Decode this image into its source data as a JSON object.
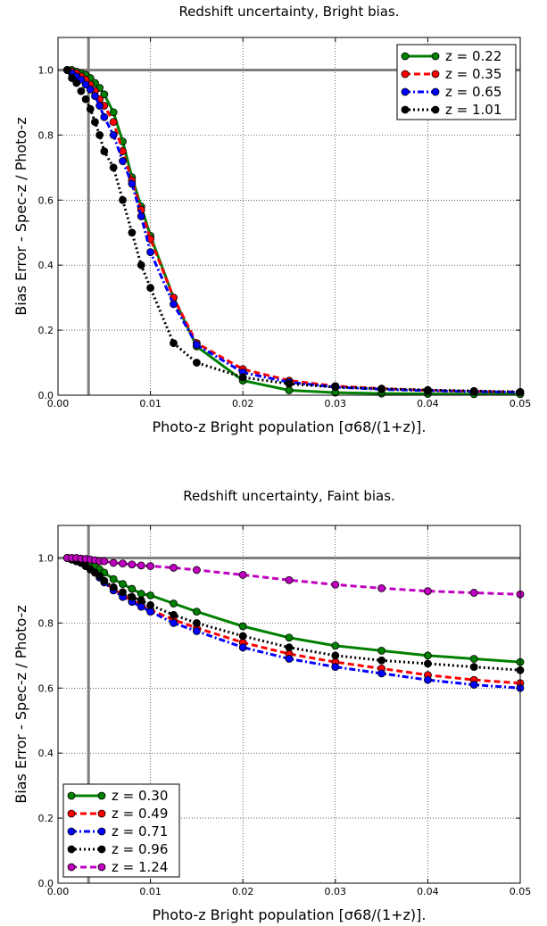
{
  "chart_data": [
    {
      "type": "line",
      "title": "Redshift uncertainty, Bright bias.",
      "xlabel": "Photo-z Bright population [σ68/(1+z)].",
      "ylabel": "Bias Error - Spec-z / Photo-z",
      "xlim": [
        0.0,
        0.05
      ],
      "ylim": [
        0.0,
        1.1
      ],
      "xticks": [
        "0.00",
        "0.01",
        "0.02",
        "0.03",
        "0.04",
        "0.05"
      ],
      "yticks": [
        "0.0",
        "0.2",
        "0.4",
        "0.6",
        "0.8",
        "1.0"
      ],
      "grid": true,
      "legend_position": "top-right",
      "reference_lines": {
        "hline_y": 1.0,
        "vline_x": 0.0033
      },
      "x": [
        0.001,
        0.0015,
        0.002,
        0.0025,
        0.003,
        0.0035,
        0.004,
        0.0045,
        0.005,
        0.006,
        0.007,
        0.008,
        0.009,
        0.01,
        0.0125,
        0.015,
        0.02,
        0.025,
        0.03,
        0.035,
        0.04,
        0.045,
        0.05
      ],
      "series": [
        {
          "name": "z = 0.22",
          "color": "#008000",
          "dash": "solid",
          "values": [
            1.0,
            1.0,
            0.995,
            0.99,
            0.985,
            0.975,
            0.96,
            0.945,
            0.925,
            0.87,
            0.78,
            0.67,
            0.58,
            0.49,
            0.3,
            0.15,
            0.045,
            0.015,
            0.008,
            0.005,
            0.004,
            0.003,
            0.003
          ]
        },
        {
          "name": "z = 0.35",
          "color": "#ff0000",
          "dash": "dashed",
          "values": [
            1.0,
            0.995,
            0.99,
            0.98,
            0.97,
            0.955,
            0.935,
            0.91,
            0.89,
            0.84,
            0.75,
            0.66,
            0.57,
            0.48,
            0.3,
            0.16,
            0.08,
            0.045,
            0.028,
            0.02,
            0.015,
            0.012,
            0.01
          ]
        },
        {
          "name": "z = 0.65",
          "color": "#0000ff",
          "dash": "dashdot",
          "values": [
            1.0,
            0.99,
            0.98,
            0.97,
            0.955,
            0.94,
            0.92,
            0.89,
            0.855,
            0.8,
            0.72,
            0.65,
            0.55,
            0.44,
            0.28,
            0.155,
            0.07,
            0.04,
            0.025,
            0.018,
            0.014,
            0.011,
            0.009
          ]
        },
        {
          "name": "z = 1.01",
          "color": "#000000",
          "dash": "dotted",
          "values": [
            1.0,
            0.975,
            0.96,
            0.935,
            0.91,
            0.88,
            0.84,
            0.8,
            0.75,
            0.7,
            0.6,
            0.5,
            0.4,
            0.33,
            0.16,
            0.1,
            0.055,
            0.035,
            0.025,
            0.02,
            0.016,
            0.013,
            0.01
          ]
        }
      ]
    },
    {
      "type": "line",
      "title": "Redshift uncertainty, Faint bias.",
      "xlabel": "Photo-z Bright population [σ68/(1+z)].",
      "ylabel": "Bias Error - Spec-z / Photo-z",
      "xlim": [
        0.0,
        0.05
      ],
      "ylim": [
        0.0,
        1.1
      ],
      "xticks": [
        "0.00",
        "0.01",
        "0.02",
        "0.03",
        "0.04",
        "0.05"
      ],
      "yticks": [
        "0.0",
        "0.2",
        "0.4",
        "0.6",
        "0.8",
        "1.0"
      ],
      "grid": true,
      "legend_position": "bottom-left",
      "reference_lines": {
        "hline_y": 1.0,
        "vline_x": 0.0033
      },
      "x": [
        0.001,
        0.0015,
        0.002,
        0.0025,
        0.003,
        0.0035,
        0.004,
        0.0045,
        0.005,
        0.006,
        0.007,
        0.008,
        0.009,
        0.01,
        0.0125,
        0.015,
        0.02,
        0.025,
        0.03,
        0.035,
        0.04,
        0.045,
        0.05
      ],
      "series": [
        {
          "name": "z = 0.30",
          "color": "#008000",
          "dash": "solid",
          "values": [
            1.0,
            0.998,
            0.995,
            0.99,
            0.985,
            0.98,
            0.975,
            0.965,
            0.955,
            0.935,
            0.92,
            0.905,
            0.89,
            0.885,
            0.86,
            0.835,
            0.79,
            0.755,
            0.73,
            0.715,
            0.7,
            0.69,
            0.68
          ]
        },
        {
          "name": "z = 0.49",
          "color": "#ff0000",
          "dash": "dashed",
          "values": [
            1.0,
            0.995,
            0.99,
            0.985,
            0.975,
            0.965,
            0.955,
            0.94,
            0.925,
            0.905,
            0.885,
            0.87,
            0.855,
            0.84,
            0.81,
            0.785,
            0.74,
            0.705,
            0.68,
            0.66,
            0.64,
            0.625,
            0.615
          ]
        },
        {
          "name": "z = 0.71",
          "color": "#0000ff",
          "dash": "dashdot",
          "values": [
            1.0,
            0.995,
            0.99,
            0.985,
            0.975,
            0.965,
            0.955,
            0.94,
            0.925,
            0.9,
            0.88,
            0.865,
            0.85,
            0.835,
            0.8,
            0.775,
            0.725,
            0.69,
            0.665,
            0.645,
            0.625,
            0.61,
            0.6
          ]
        },
        {
          "name": "z = 0.96",
          "color": "#000000",
          "dash": "dotted",
          "values": [
            1.0,
            0.995,
            0.99,
            0.985,
            0.975,
            0.965,
            0.955,
            0.945,
            0.93,
            0.91,
            0.895,
            0.88,
            0.87,
            0.855,
            0.825,
            0.8,
            0.76,
            0.725,
            0.7,
            0.685,
            0.675,
            0.665,
            0.655
          ]
        },
        {
          "name": "z = 1.24",
          "color": "#bf00bf",
          "dash": "dashed",
          "values": [
            1.0,
            1.0,
            1.0,
            0.998,
            0.997,
            0.995,
            0.993,
            0.99,
            0.99,
            0.985,
            0.983,
            0.98,
            0.977,
            0.975,
            0.97,
            0.963,
            0.948,
            0.932,
            0.918,
            0.907,
            0.898,
            0.893,
            0.888
          ]
        }
      ]
    }
  ]
}
